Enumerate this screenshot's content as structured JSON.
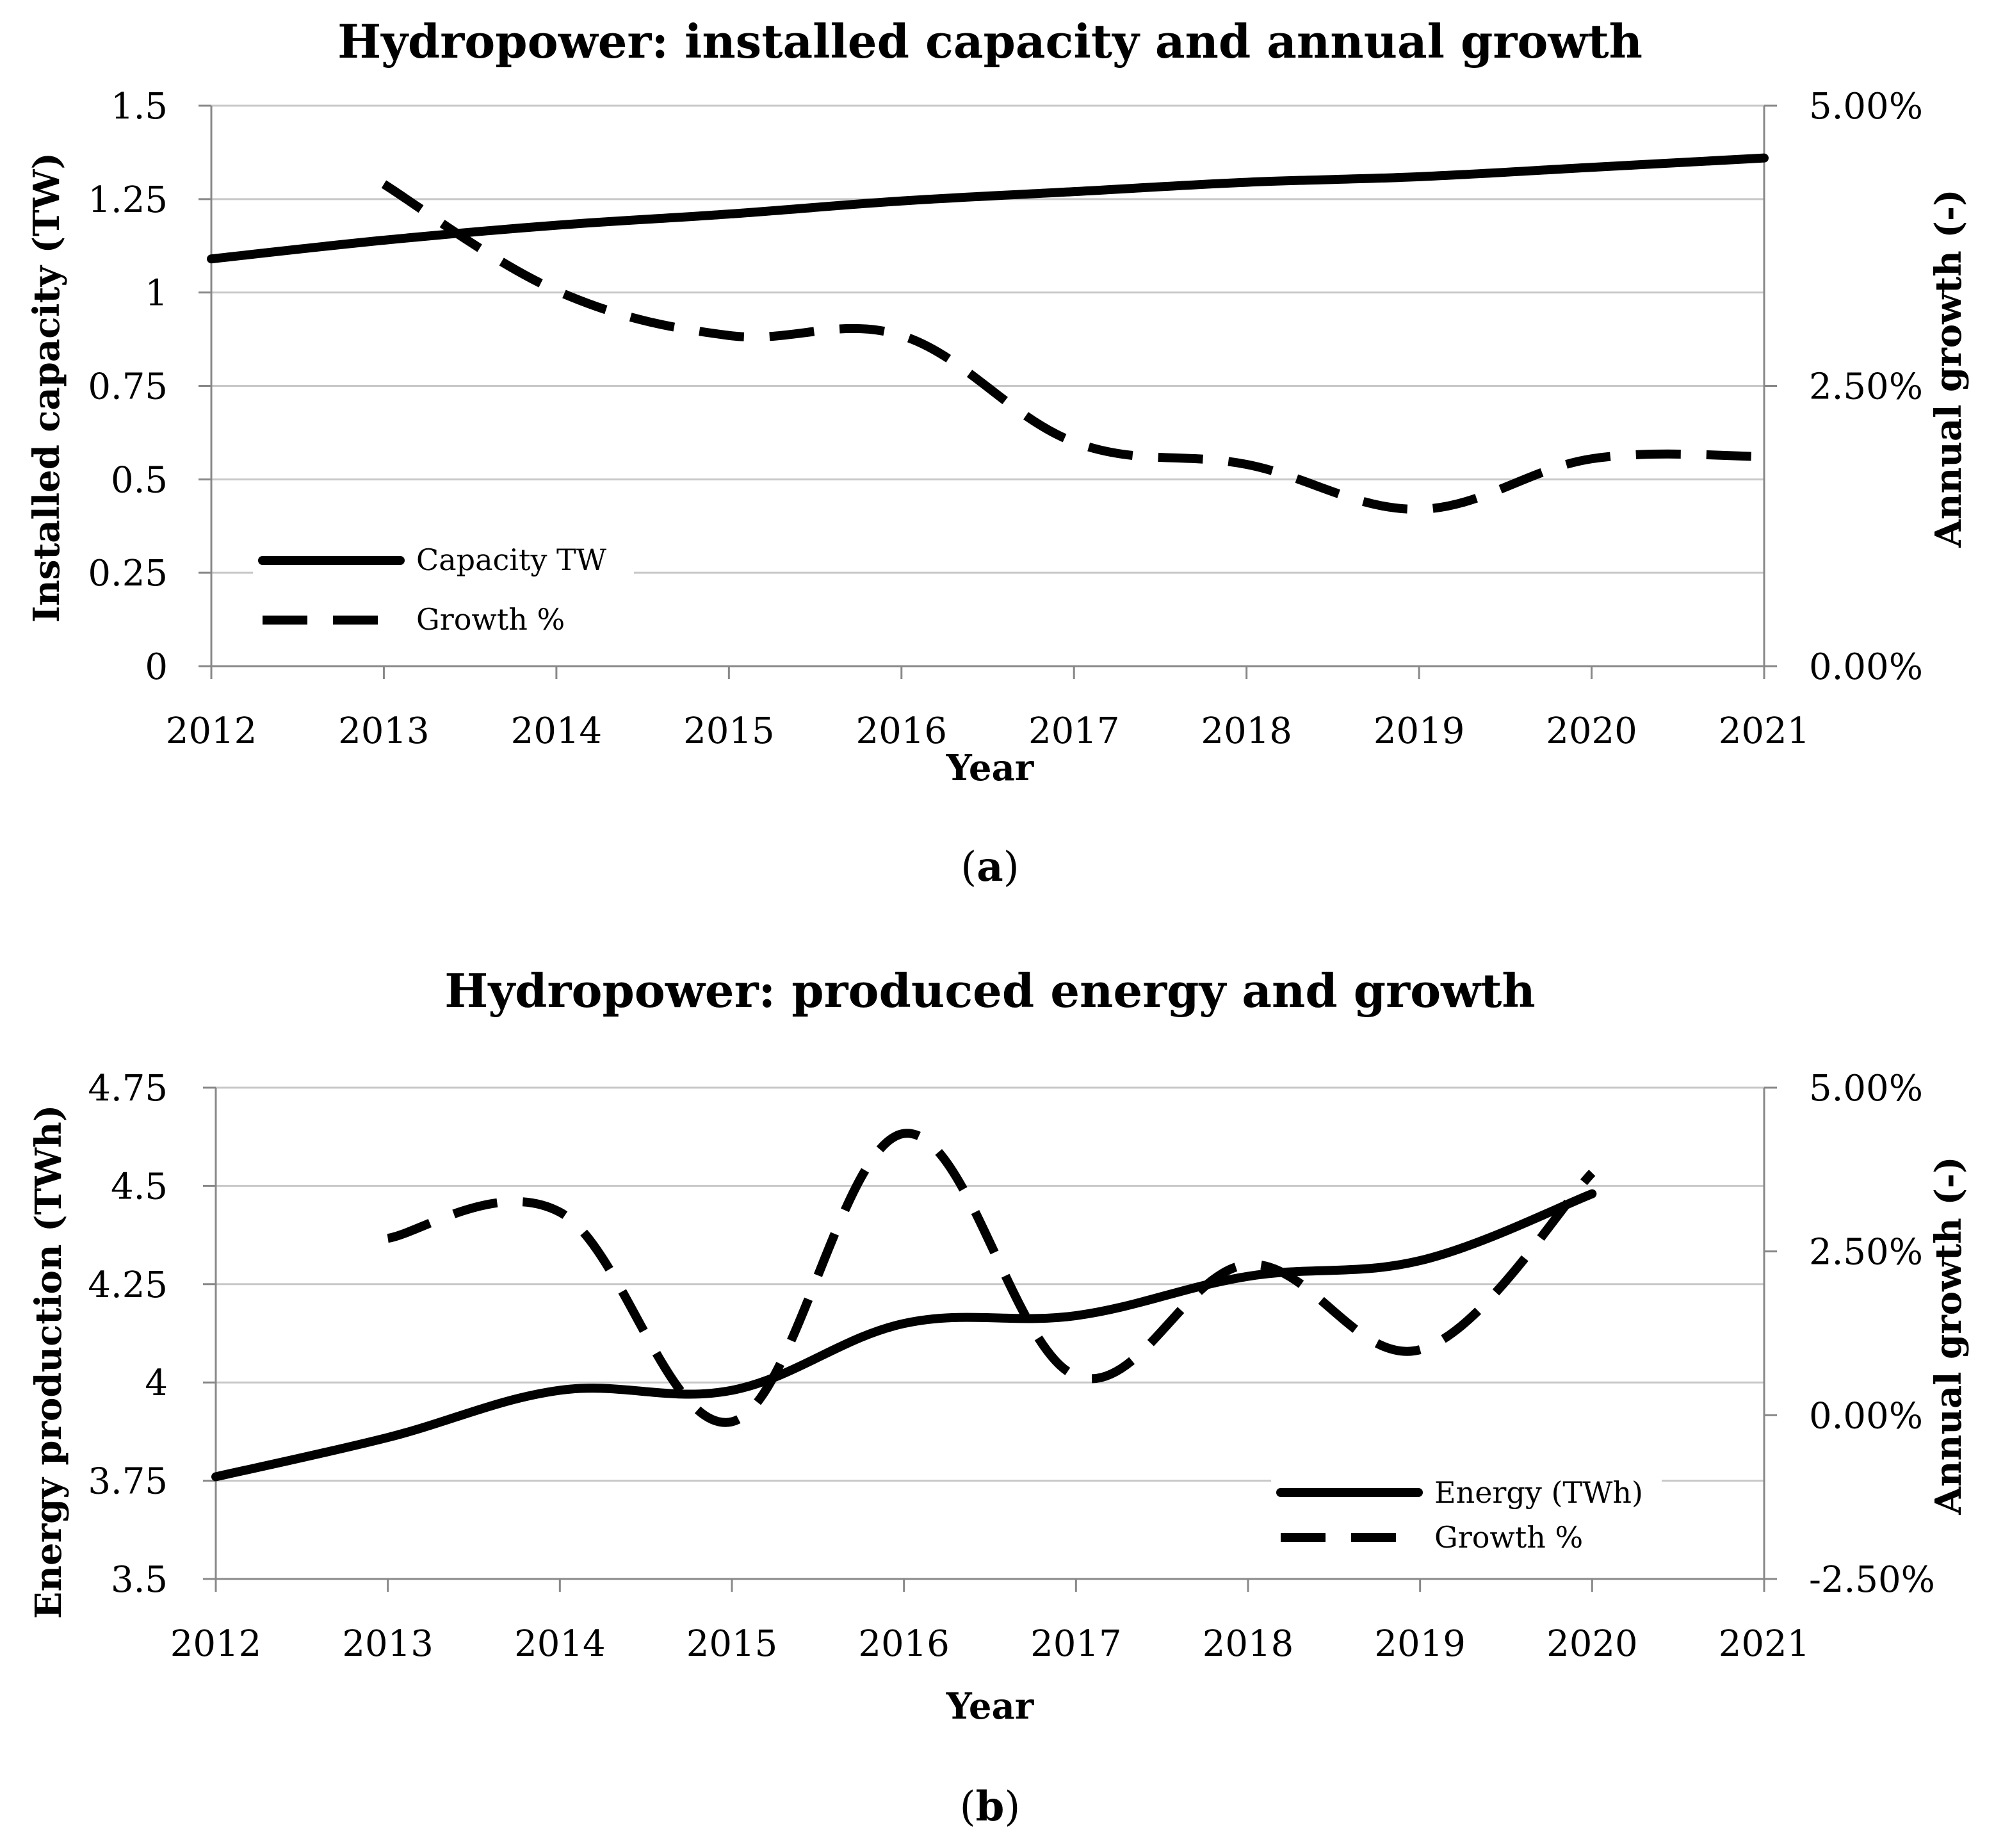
{
  "chart_data": [
    {
      "type": "line",
      "title": "Hydropower: installed capacity and annual growth",
      "xlabel": "Year",
      "ylabel": "Installed capacity (TW)",
      "y2label": "Annual growth (-)",
      "caption_open": "(",
      "caption_letter": "a",
      "caption_close": ")",
      "categories": [
        "2012",
        "2013",
        "2014",
        "2015",
        "2016",
        "2017",
        "2018",
        "2019",
        "2020",
        "2021"
      ],
      "y_ticks": [
        "0",
        "0.25",
        "0.5",
        "0.75",
        "1",
        "1.25",
        "1.5"
      ],
      "y2_ticks": [
        "0.00%",
        "2.50%",
        "5.00%"
      ],
      "ylim": [
        0,
        1.5
      ],
      "y2lim": [
        0,
        5
      ],
      "grid": true,
      "legend_position": "bottom-left",
      "series": [
        {
          "name": "Capacity TW",
          "axis": "left",
          "style": "solid",
          "x": [
            2012,
            2013,
            2014,
            2015,
            2016,
            2017,
            2018,
            2019,
            2020,
            2021
          ],
          "values": [
            1.09,
            1.14,
            1.18,
            1.21,
            1.245,
            1.27,
            1.295,
            1.31,
            1.335,
            1.36
          ]
        },
        {
          "name": "Growth %",
          "axis": "right",
          "style": "dashed",
          "x": [
            2013,
            2014,
            2015,
            2016,
            2017,
            2018,
            2019,
            2020,
            2021
          ],
          "values": [
            4.3,
            3.35,
            2.95,
            2.95,
            2.0,
            1.8,
            1.4,
            1.85,
            1.87
          ]
        }
      ]
    },
    {
      "type": "line",
      "title": "Hydropower: produced energy and growth",
      "xlabel": "Year",
      "ylabel": "Energy production (TWh)",
      "y2label": "Annual growth (-)",
      "caption_open": "(",
      "caption_letter": "b",
      "caption_close": ")",
      "categories": [
        "2012",
        "2013",
        "2014",
        "2015",
        "2016",
        "2017",
        "2018",
        "2019",
        "2020",
        "2021"
      ],
      "y_ticks": [
        "3.5",
        "3.75",
        "4",
        "4.25",
        "4.5",
        "4.75"
      ],
      "y2_ticks": [
        "-2.50%",
        "0.00%",
        "2.50%",
        "5.00%"
      ],
      "ylim": [
        3.5,
        4.75
      ],
      "y2lim": [
        -2.5,
        5
      ],
      "grid": true,
      "legend_position": "bottom-right",
      "series": [
        {
          "name": "Energy (TWh)",
          "axis": "left",
          "style": "solid",
          "x": [
            2012,
            2013,
            2014,
            2015,
            2016,
            2017,
            2018,
            2019,
            2020
          ],
          "values": [
            3.76,
            3.86,
            3.98,
            3.98,
            4.15,
            4.17,
            4.27,
            4.31,
            4.48
          ]
        },
        {
          "name": "Growth %",
          "axis": "right",
          "style": "dashed",
          "x": [
            2013,
            2014,
            2015,
            2016,
            2017,
            2018,
            2019,
            2020
          ],
          "values": [
            2.7,
            3.1,
            -0.1,
            4.3,
            0.6,
            2.3,
            1.0,
            3.7
          ]
        }
      ]
    }
  ]
}
